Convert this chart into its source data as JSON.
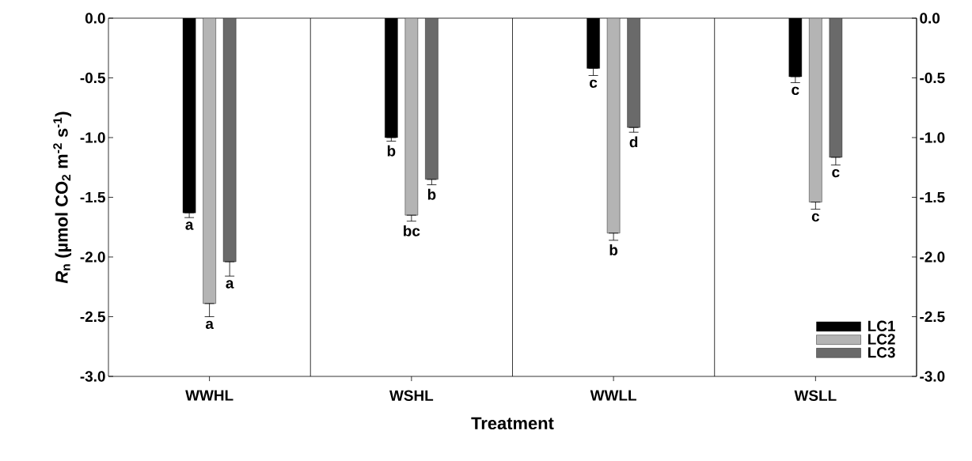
{
  "chart_data": {
    "type": "bar",
    "xlabel": "Treatment",
    "ylabel": "*R*$_{n}$ (µmol CO$_{2}$ m$^{-2}$ s$^{-1}$)",
    "categories": [
      "WWHL",
      "WSHL",
      "WWLL",
      "WSLL"
    ],
    "series": [
      {
        "name": "LC1",
        "color": "#000000",
        "values": [
          -1.63,
          -1.0,
          -0.42,
          -0.49
        ],
        "errors": [
          [
            -1.67,
            -1.63
          ],
          [
            -1.03,
            -1.0
          ],
          [
            -0.48,
            -0.42
          ],
          [
            -0.54,
            -0.49
          ]
        ],
        "value_labels": [
          "a",
          "b",
          "c",
          "c"
        ]
      },
      {
        "name": "LC2",
        "color": "#b4b4b4",
        "values": [
          -2.39,
          -1.65,
          -1.8,
          -1.54
        ],
        "errors": [
          [
            -2.5,
            -2.39
          ],
          [
            -1.7,
            -1.65
          ],
          [
            -1.86,
            -1.8
          ],
          [
            -1.6,
            -1.54
          ]
        ],
        "value_labels": [
          "a",
          "bc",
          "b",
          "c"
        ]
      },
      {
        "name": "LC3",
        "color": "#6a6a6a",
        "values": [
          -2.04,
          -1.35,
          -0.915,
          -1.165
        ],
        "errors": [
          [
            -2.16,
            -2.04
          ],
          [
            -1.395,
            -1.35
          ],
          [
            -0.955,
            -0.915
          ],
          [
            -1.23,
            -1.165
          ]
        ],
        "value_labels": [
          "a",
          "b",
          "d",
          "c"
        ]
      }
    ],
    "ylim": [
      -3.0,
      0.0
    ],
    "yticks": [
      {
        "value": -3.0,
        "label": "-3.0"
      },
      {
        "value": -2.5,
        "label": "-2.5"
      },
      {
        "value": -2.0,
        "label": "-2.0"
      },
      {
        "value": -1.5,
        "label": "-1.5"
      },
      {
        "value": -1.0,
        "label": "-1.0"
      },
      {
        "value": -0.5,
        "label": "-0.5"
      },
      {
        "value": 0.0,
        "label": "0.0"
      }
    ],
    "y2lim": [
      -3.0,
      0.0
    ],
    "y2ticks": [
      {
        "value": -3.0,
        "label": "-3.0"
      },
      {
        "value": -2.5,
        "label": "-2.5"
      },
      {
        "value": -2.0,
        "label": "-2.0"
      },
      {
        "value": -1.5,
        "label": "-1.5"
      },
      {
        "value": -1.0,
        "label": "-1.0"
      },
      {
        "value": -0.5,
        "label": "-0.5"
      },
      {
        "value": 0.0,
        "label": "0.0"
      }
    ],
    "legend": "bottom right"
  }
}
